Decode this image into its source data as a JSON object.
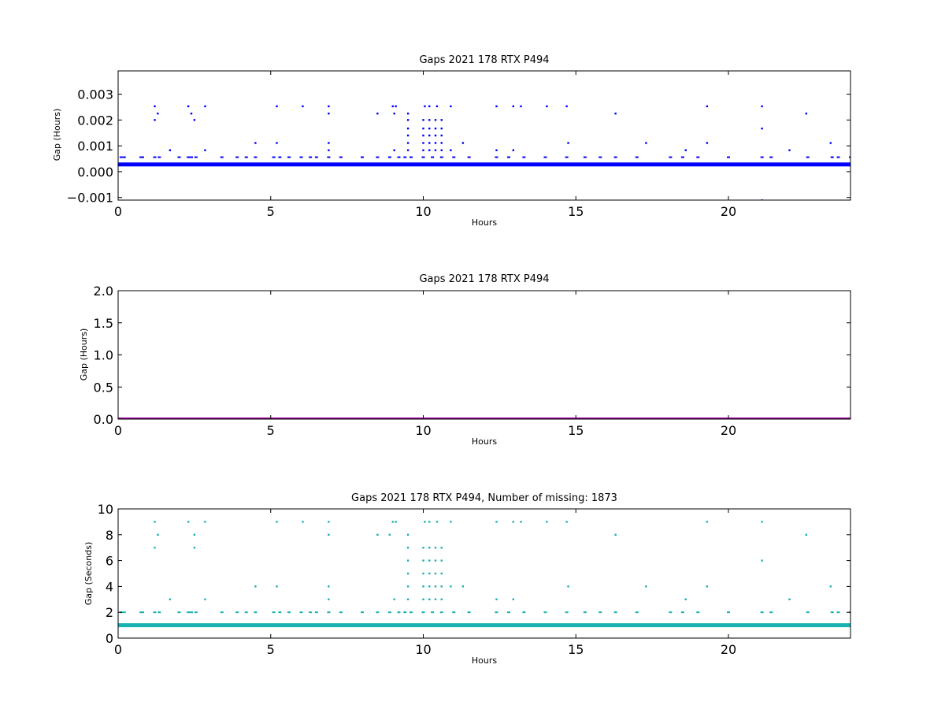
{
  "chart_data": [
    {
      "type": "scatter",
      "title": "Gaps 2021 178 RTX  P494",
      "xlabel": "Hours",
      "ylabel": "Gap (Hours)",
      "xlim": [
        0,
        24
      ],
      "ylim": [
        -0.0011,
        0.0039
      ],
      "xticks": [
        0,
        5,
        10,
        15,
        20
      ],
      "xtick_labels": [
        "0",
        "5",
        "10",
        "15",
        "20"
      ],
      "yticks": [
        -0.001,
        0.0,
        0.001,
        0.002,
        0.003
      ],
      "ytick_labels": [
        "−0.001",
        "0.000",
        "0.001",
        "0.002",
        "0.003"
      ],
      "grid": false,
      "color": "#0000ff",
      "baseline": {
        "y": 0.00028,
        "x_range": [
          0,
          24
        ]
      },
      "points": [
        [
          1.2,
          0.00253
        ],
        [
          1.2,
          0.002
        ],
        [
          1.3,
          0.00225
        ],
        [
          2.3,
          0.00253
        ],
        [
          2.4,
          0.00225
        ],
        [
          2.5,
          0.002
        ],
        [
          2.85,
          0.00253
        ],
        [
          5.2,
          0.00253
        ],
        [
          6.05,
          0.00253
        ],
        [
          6.9,
          0.00253
        ],
        [
          6.9,
          0.00225
        ],
        [
          9.0,
          0.00253
        ],
        [
          9.1,
          0.00253
        ],
        [
          8.5,
          0.00225
        ],
        [
          9.05,
          0.00225
        ],
        [
          10.05,
          0.00253
        ],
        [
          10.2,
          0.00253
        ],
        [
          10.45,
          0.00253
        ],
        [
          10.9,
          0.00253
        ],
        [
          12.4,
          0.00253
        ],
        [
          12.95,
          0.00253
        ],
        [
          13.2,
          0.00253
        ],
        [
          14.05,
          0.00253
        ],
        [
          14.7,
          0.00253
        ],
        [
          16.3,
          0.00225
        ],
        [
          19.3,
          0.00253
        ],
        [
          21.1,
          0.00253
        ],
        [
          22.55,
          0.00225
        ],
        [
          21.1,
          0.00167
        ],
        [
          21.1,
          -0.00111
        ],
        [
          1.7,
          0.00083
        ],
        [
          2.85,
          0.00083
        ],
        [
          4.5,
          0.00111
        ],
        [
          5.2,
          0.00111
        ],
        [
          6.9,
          0.00111
        ],
        [
          6.9,
          0.00083
        ],
        [
          9.05,
          0.00083
        ],
        [
          10.9,
          0.00083
        ],
        [
          11.3,
          0.00111
        ],
        [
          12.4,
          0.00083
        ],
        [
          12.95,
          0.00083
        ],
        [
          14.75,
          0.00111
        ],
        [
          17.3,
          0.00111
        ],
        [
          18.6,
          0.00083
        ],
        [
          19.3,
          0.00111
        ],
        [
          22.0,
          0.00083
        ],
        [
          23.35,
          0.00111
        ],
        [
          9.5,
          0.00225
        ],
        [
          9.5,
          0.002
        ],
        [
          9.5,
          0.00167
        ],
        [
          9.5,
          0.0014
        ],
        [
          9.5,
          0.00111
        ],
        [
          9.5,
          0.00083
        ],
        [
          10.0,
          0.002
        ],
        [
          10.0,
          0.00167
        ],
        [
          10.0,
          0.0014
        ],
        [
          10.0,
          0.00111
        ],
        [
          10.0,
          0.00083
        ],
        [
          10.2,
          0.002
        ],
        [
          10.2,
          0.00167
        ],
        [
          10.2,
          0.0014
        ],
        [
          10.2,
          0.00111
        ],
        [
          10.2,
          0.00083
        ],
        [
          10.4,
          0.002
        ],
        [
          10.4,
          0.00167
        ],
        [
          10.4,
          0.0014
        ],
        [
          10.4,
          0.00111
        ],
        [
          10.4,
          0.00083
        ],
        [
          10.6,
          0.002
        ],
        [
          10.6,
          0.00167
        ],
        [
          10.6,
          0.0014
        ],
        [
          10.6,
          0.00111
        ],
        [
          10.6,
          0.00083
        ]
      ],
      "low_row": {
        "y": 0.00056,
        "x": [
          0.1,
          0.2,
          0.75,
          0.8,
          1.2,
          1.35,
          2.0,
          2.3,
          2.4,
          2.55,
          3.4,
          3.9,
          4.2,
          4.5,
          5.1,
          5.3,
          5.6,
          6.0,
          6.3,
          6.5,
          6.9,
          7.3,
          8.0,
          8.5,
          8.9,
          9.2,
          9.4,
          9.6,
          10.0,
          10.3,
          10.6,
          11.0,
          11.5,
          12.4,
          12.8,
          13.3,
          14.0,
          14.7,
          15.3,
          15.8,
          16.3,
          17.0,
          18.1,
          18.5,
          19.0,
          20.0,
          21.1,
          21.4,
          22.6,
          23.4,
          23.6,
          24.0
        ]
      }
    },
    {
      "type": "line",
      "title": "Gaps 2021 178 RTX  P494",
      "xlabel": "Hours",
      "ylabel": "Gap (Hours)",
      "xlim": [
        0,
        24
      ],
      "ylim": [
        0,
        2.0
      ],
      "xticks": [
        0,
        5,
        10,
        15,
        20
      ],
      "xtick_labels": [
        "0",
        "5",
        "10",
        "15",
        "20"
      ],
      "yticks": [
        0.0,
        0.5,
        1.0,
        1.5,
        2.0
      ],
      "ytick_labels": [
        "0.0",
        "0.5",
        "1.0",
        "1.5",
        "2.0"
      ],
      "grid": false,
      "color": "#990099",
      "baseline": {
        "y": 0.0003,
        "x_range": [
          0,
          24
        ]
      }
    },
    {
      "type": "scatter",
      "title": "Gaps 2021 178 RTX  P494, Number of missing: 1873",
      "xlabel": "Hours",
      "ylabel": "Gap (Seconds)",
      "xlim": [
        0,
        24
      ],
      "ylim": [
        0,
        10
      ],
      "xticks": [
        0,
        5,
        10,
        15,
        20
      ],
      "xtick_labels": [
        "0",
        "5",
        "10",
        "15",
        "20"
      ],
      "yticks": [
        0,
        2,
        4,
        6,
        8,
        10
      ],
      "ytick_labels": [
        "0",
        "2",
        "4",
        "6",
        "8",
        "10"
      ],
      "grid": false,
      "color": "#1ab2b2",
      "baseline": {
        "y": 1,
        "x_range": [
          0,
          24
        ]
      },
      "points": [
        [
          1.2,
          9
        ],
        [
          1.2,
          7
        ],
        [
          1.3,
          8
        ],
        [
          2.3,
          9
        ],
        [
          2.5,
          8
        ],
        [
          2.5,
          7
        ],
        [
          2.85,
          9
        ],
        [
          5.2,
          9
        ],
        [
          6.05,
          9
        ],
        [
          6.9,
          9
        ],
        [
          6.9,
          8
        ],
        [
          9.0,
          9
        ],
        [
          9.1,
          9
        ],
        [
          8.5,
          8
        ],
        [
          8.9,
          8
        ],
        [
          10.05,
          9
        ],
        [
          10.2,
          9
        ],
        [
          10.45,
          9
        ],
        [
          10.9,
          9
        ],
        [
          12.4,
          9
        ],
        [
          12.95,
          9
        ],
        [
          13.2,
          9
        ],
        [
          14.05,
          9
        ],
        [
          14.7,
          9
        ],
        [
          16.3,
          8
        ],
        [
          19.3,
          9
        ],
        [
          21.1,
          9
        ],
        [
          22.55,
          8
        ],
        [
          21.1,
          6
        ],
        [
          1.7,
          3
        ],
        [
          2.85,
          3
        ],
        [
          4.5,
          4
        ],
        [
          5.2,
          4
        ],
        [
          6.9,
          4
        ],
        [
          6.9,
          3
        ],
        [
          9.05,
          3
        ],
        [
          10.9,
          4
        ],
        [
          11.3,
          4
        ],
        [
          12.4,
          3
        ],
        [
          12.95,
          3
        ],
        [
          14.75,
          4
        ],
        [
          17.3,
          4
        ],
        [
          18.6,
          3
        ],
        [
          19.3,
          4
        ],
        [
          22.0,
          3
        ],
        [
          23.35,
          4
        ],
        [
          9.5,
          8
        ],
        [
          9.5,
          7
        ],
        [
          9.5,
          6
        ],
        [
          9.5,
          5
        ],
        [
          9.5,
          4
        ],
        [
          9.5,
          3
        ],
        [
          10.0,
          7
        ],
        [
          10.0,
          6
        ],
        [
          10.0,
          5
        ],
        [
          10.0,
          4
        ],
        [
          10.0,
          3
        ],
        [
          10.2,
          7
        ],
        [
          10.2,
          6
        ],
        [
          10.2,
          5
        ],
        [
          10.2,
          4
        ],
        [
          10.2,
          3
        ],
        [
          10.4,
          7
        ],
        [
          10.4,
          6
        ],
        [
          10.4,
          5
        ],
        [
          10.4,
          4
        ],
        [
          10.4,
          3
        ],
        [
          10.6,
          7
        ],
        [
          10.6,
          6
        ],
        [
          10.6,
          5
        ],
        [
          10.6,
          4
        ],
        [
          10.6,
          3
        ]
      ],
      "low_row": {
        "y": 2,
        "x": [
          0.1,
          0.2,
          0.75,
          0.8,
          1.2,
          1.35,
          2.0,
          2.3,
          2.4,
          2.55,
          3.4,
          3.9,
          4.2,
          4.5,
          5.1,
          5.3,
          5.6,
          6.0,
          6.3,
          6.5,
          6.9,
          7.3,
          8.0,
          8.5,
          8.9,
          9.2,
          9.4,
          9.6,
          10.0,
          10.3,
          10.6,
          11.0,
          11.5,
          12.4,
          12.8,
          13.3,
          14.0,
          14.7,
          15.3,
          15.8,
          16.3,
          17.0,
          18.1,
          18.5,
          19.0,
          20.0,
          21.1,
          21.4,
          22.6,
          23.4,
          23.6,
          24.0
        ]
      }
    }
  ]
}
